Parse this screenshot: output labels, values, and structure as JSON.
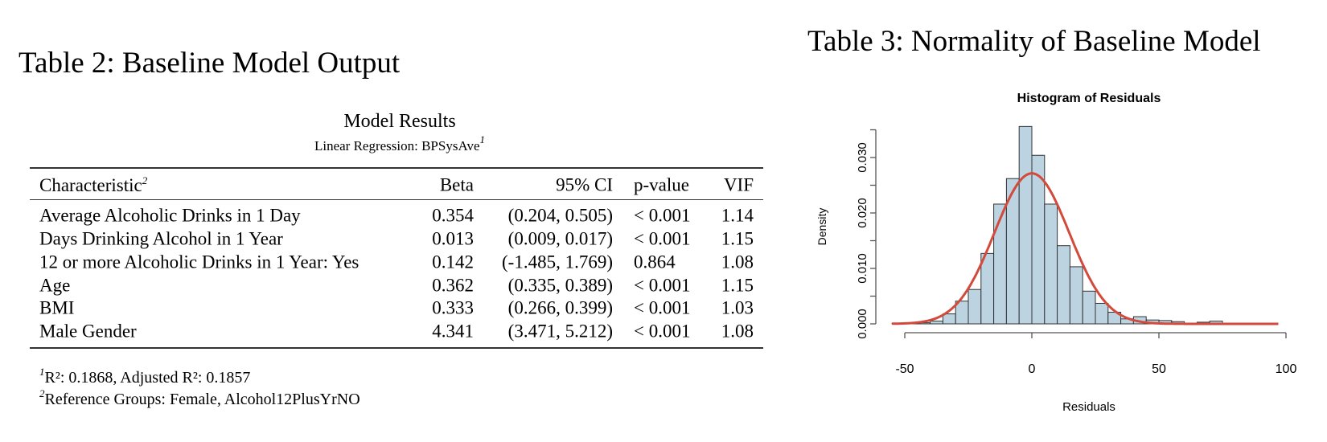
{
  "table2": {
    "heading": "Table 2: Baseline Model Output",
    "title": "Model Results",
    "subtitle": "Linear Regression: BPSysAve",
    "subtitle_note": "1",
    "columns": [
      "Characteristic",
      "Beta",
      "95% CI",
      "p-value",
      "VIF"
    ],
    "characteristic_note": "2",
    "rows": [
      {
        "characteristic": "Average Alcoholic Drinks in 1 Day",
        "beta": "0.354",
        "ci": "(0.204, 0.505)",
        "p": "< 0.001",
        "vif": "1.14"
      },
      {
        "characteristic": "Days Drinking Alcohol in 1 Year",
        "beta": "0.013",
        "ci": "(0.009, 0.017)",
        "p": "< 0.001",
        "vif": "1.15"
      },
      {
        "characteristic": "12 or more Alcoholic Drinks in 1 Year: Yes",
        "beta": "0.142",
        "ci": "(-1.485, 1.769)",
        "p": "0.864",
        "vif": "1.08"
      },
      {
        "characteristic": "Age",
        "beta": "0.362",
        "ci": "(0.335, 0.389)",
        "p": "< 0.001",
        "vif": "1.15"
      },
      {
        "characteristic": "BMI",
        "beta": "0.333",
        "ci": "(0.266, 0.399)",
        "p": "< 0.001",
        "vif": "1.03"
      },
      {
        "characteristic": "Male Gender",
        "beta": "4.341",
        "ci": "(3.471, 5.212)",
        "p": "< 0.001",
        "vif": "1.08"
      }
    ],
    "footnotes": [
      {
        "mark": "1",
        "text": "R²: 0.1868, Adjusted R²: 0.1857"
      },
      {
        "mark": "2",
        "text": "Reference Groups: Female, Alcohol12PlusYrNO"
      }
    ]
  },
  "table3": {
    "heading": "Table 3: Normality of Baseline Model"
  },
  "chart_data": {
    "type": "bar",
    "title": "Histogram of Residuals",
    "xlabel": "Residuals",
    "ylabel": "Density",
    "bin_width": 5,
    "bin_starts": [
      -55,
      -50,
      -45,
      -40,
      -35,
      -30,
      -25,
      -20,
      -15,
      -10,
      -5,
      0,
      5,
      10,
      15,
      20,
      25,
      30,
      35,
      40,
      45,
      50,
      55,
      60,
      65,
      70
    ],
    "values": [
      0.0001,
      0.0001,
      0.0002,
      0.0005,
      0.0018,
      0.0041,
      0.0062,
      0.0127,
      0.0216,
      0.0262,
      0.0356,
      0.0304,
      0.0216,
      0.0141,
      0.0103,
      0.0059,
      0.0037,
      0.0021,
      0.0009,
      0.0013,
      0.0007,
      0.0006,
      0.0004,
      0.0001,
      0.0003,
      0.0005
    ],
    "x_ticks": [
      "-50",
      "0",
      "50",
      "100"
    ],
    "x_tick_values": [
      -50,
      0,
      50,
      100
    ],
    "y_ticks": [
      "0.000",
      "0.010",
      "0.020",
      "0.030"
    ],
    "y_tick_values": [
      0,
      0.01,
      0.02,
      0.03
    ],
    "xlim": [
      -55,
      100
    ],
    "ylim": [
      0,
      0.035
    ],
    "overlay": {
      "type": "normal-density-curve",
      "mean": 0,
      "sd": 14.7,
      "color": "#d24a3b"
    },
    "bar_color": "#bcd4e2",
    "grid": false
  }
}
